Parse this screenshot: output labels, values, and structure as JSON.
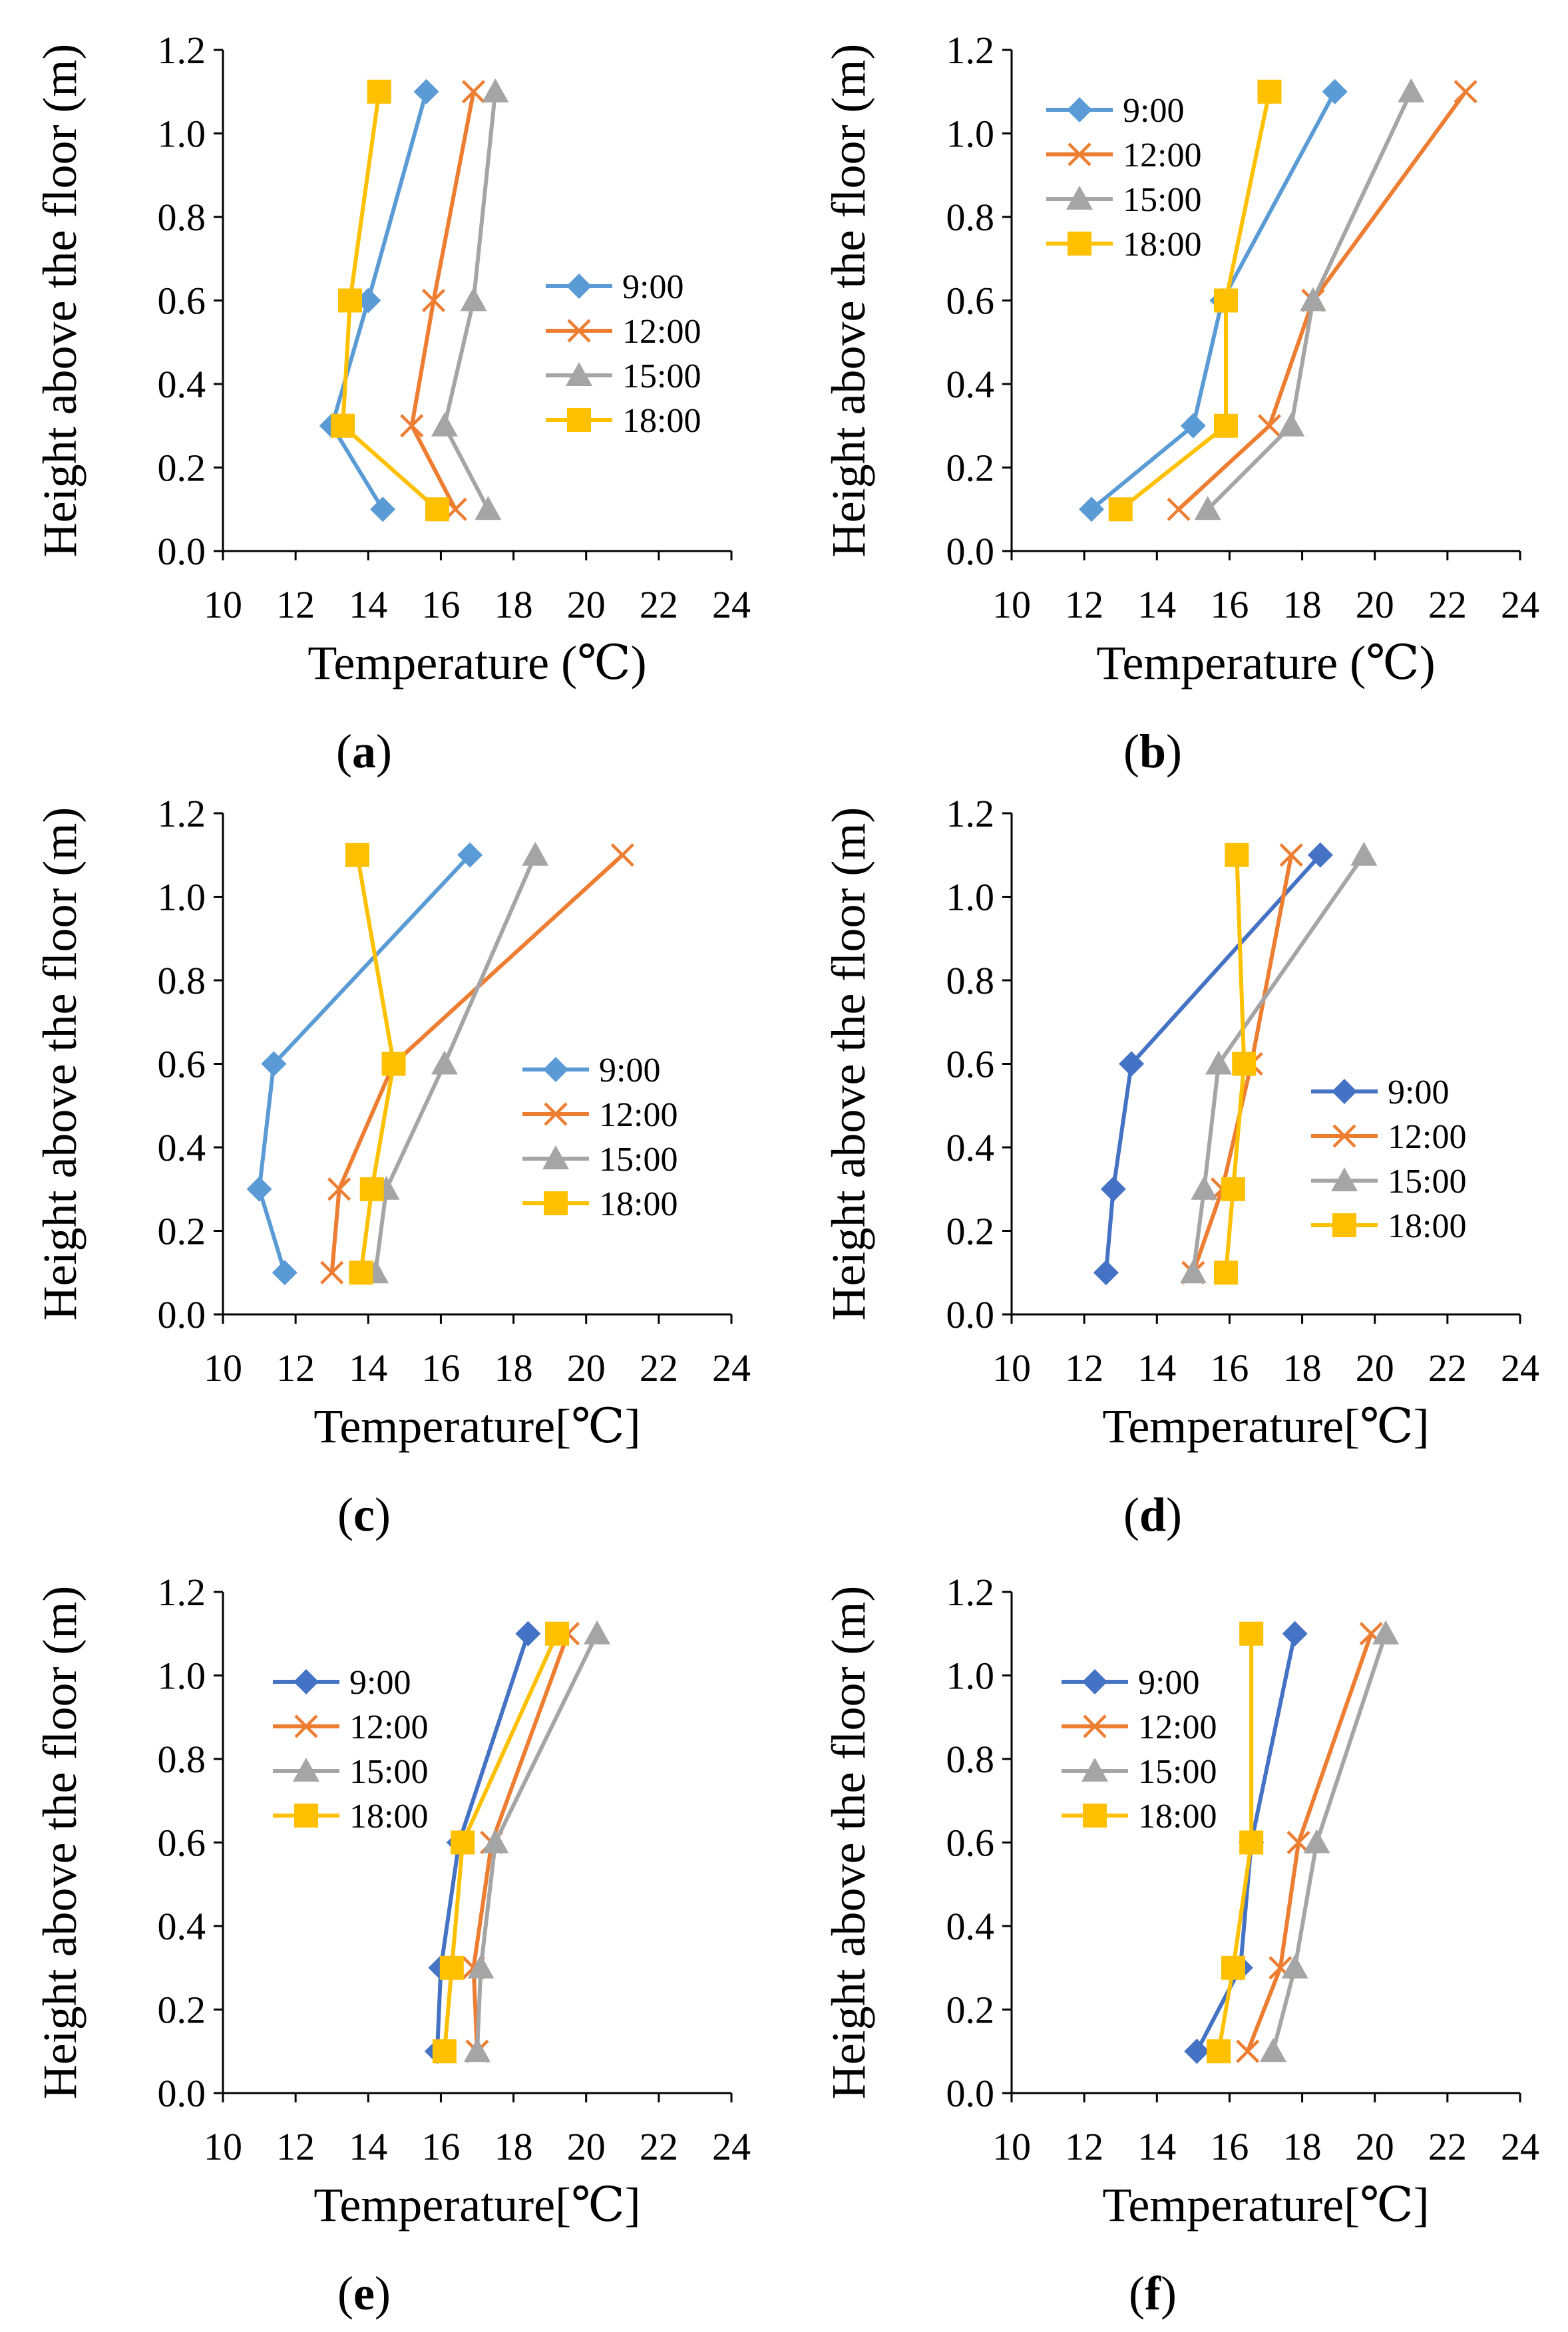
{
  "figure": {
    "colors": {
      "9:00": "#5B9BD5",
      "9:00 (dark)": "#4472C4",
      "12:00": "#ED7D31",
      "15:00": "#A5A5A5",
      "18:00": "#FFC000",
      "axis": "#000000"
    }
  },
  "chart_data": [
    {
      "panel": "(a)",
      "letter": "a",
      "type": "line",
      "xlabel": "Temperature (℃)",
      "ylabel": "Height above the floor (m)",
      "xlim": [
        10,
        24
      ],
      "ylim": [
        0,
        1.2
      ],
      "xticks": [
        "10",
        "12",
        "14",
        "16",
        "18",
        "20",
        "22",
        "24"
      ],
      "yticks": [
        "0.0",
        "0.2",
        "0.4",
        "0.6",
        "0.8",
        "1.0",
        "1.2"
      ],
      "legend_position": "right-middle",
      "series": [
        {
          "name": "9:00",
          "color": "#5B9BD5",
          "marker": "diamond",
          "x": [
            14.4,
            13.0,
            14.0,
            15.6
          ],
          "y": [
            0.1,
            0.3,
            0.6,
            1.1
          ]
        },
        {
          "name": "12:00",
          "color": "#ED7D31",
          "marker": "x",
          "x": [
            16.4,
            15.2,
            15.8,
            16.9
          ],
          "y": [
            0.1,
            0.3,
            0.6,
            1.1
          ]
        },
        {
          "name": "15:00",
          "color": "#A5A5A5",
          "marker": "triangle",
          "x": [
            17.3,
            16.1,
            16.9,
            17.5
          ],
          "y": [
            0.1,
            0.3,
            0.6,
            1.1
          ]
        },
        {
          "name": "18:00",
          "color": "#FFC000",
          "marker": "square",
          "x": [
            15.9,
            13.3,
            13.5,
            14.3
          ],
          "y": [
            0.1,
            0.3,
            0.6,
            1.1
          ]
        }
      ]
    },
    {
      "panel": "(b)",
      "letter": "b",
      "type": "line",
      "xlabel": "Temperature (℃)",
      "ylabel": "Height above the floor (m)",
      "xlim": [
        10,
        24
      ],
      "ylim": [
        0,
        1.2
      ],
      "xticks": [
        "10",
        "12",
        "14",
        "16",
        "18",
        "20",
        "22",
        "24"
      ],
      "yticks": [
        "0.0",
        "0.2",
        "0.4",
        "0.6",
        "0.8",
        "1.0",
        "1.2"
      ],
      "legend_position": "top-left",
      "series": [
        {
          "name": "9:00",
          "color": "#5B9BD5",
          "marker": "diamond",
          "x": [
            12.2,
            15.0,
            15.8,
            18.9
          ],
          "y": [
            0.1,
            0.3,
            0.6,
            1.1
          ]
        },
        {
          "name": "12:00",
          "color": "#ED7D31",
          "marker": "x",
          "x": [
            14.6,
            17.1,
            18.3,
            22.5
          ],
          "y": [
            0.1,
            0.3,
            0.6,
            1.1
          ]
        },
        {
          "name": "15:00",
          "color": "#A5A5A5",
          "marker": "triangle",
          "x": [
            15.4,
            17.7,
            18.3,
            21.0
          ],
          "y": [
            0.1,
            0.3,
            0.6,
            1.1
          ]
        },
        {
          "name": "18:00",
          "color": "#FFC000",
          "marker": "square",
          "x": [
            13.0,
            15.9,
            15.9,
            17.1
          ],
          "y": [
            0.1,
            0.3,
            0.6,
            1.1
          ]
        }
      ]
    },
    {
      "panel": "(c)",
      "letter": "c",
      "type": "line",
      "xlabel": "Temperature[℃]",
      "ylabel": "Height above the floor (m)",
      "xlim": [
        10,
        24
      ],
      "ylim": [
        0,
        1.2
      ],
      "xticks": [
        "10",
        "12",
        "14",
        "16",
        "18",
        "20",
        "22",
        "24"
      ],
      "yticks": [
        "0.0",
        "0.2",
        "0.4",
        "0.6",
        "0.8",
        "1.0",
        "1.2"
      ],
      "legend_position": "right-middle",
      "series": [
        {
          "name": "9:00",
          "color": "#5B9BD5",
          "marker": "diamond",
          "x": [
            11.7,
            11.0,
            11.4,
            16.8
          ],
          "y": [
            0.1,
            0.3,
            0.6,
            1.1
          ]
        },
        {
          "name": "12:00",
          "color": "#ED7D31",
          "marker": "x",
          "x": [
            13.0,
            13.2,
            14.7,
            21.0
          ],
          "y": [
            0.1,
            0.3,
            0.6,
            1.1
          ]
        },
        {
          "name": "15:00",
          "color": "#A5A5A5",
          "marker": "triangle",
          "x": [
            14.2,
            14.5,
            16.1,
            18.6
          ],
          "y": [
            0.1,
            0.3,
            0.6,
            1.1
          ]
        },
        {
          "name": "18:00",
          "color": "#FFC000",
          "marker": "square",
          "x": [
            13.8,
            14.1,
            14.7,
            13.7
          ],
          "y": [
            0.1,
            0.3,
            0.6,
            1.1
          ]
        }
      ]
    },
    {
      "panel": "(d)",
      "letter": "d",
      "type": "line",
      "xlabel": "Temperature[℃]",
      "ylabel": "Height above the floor (m)",
      "xlim": [
        10,
        24
      ],
      "ylim": [
        0,
        1.2
      ],
      "xticks": [
        "10",
        "12",
        "14",
        "16",
        "18",
        "20",
        "22",
        "24"
      ],
      "yticks": [
        "0.0",
        "0.2",
        "0.4",
        "0.6",
        "0.8",
        "1.0",
        "1.2"
      ],
      "legend_position": "right-middle",
      "series": [
        {
          "name": "9:00",
          "color": "#4472C4",
          "marker": "diamond",
          "x": [
            12.6,
            12.8,
            13.3,
            18.5
          ],
          "y": [
            0.1,
            0.3,
            0.6,
            1.1
          ]
        },
        {
          "name": "12:00",
          "color": "#ED7D31",
          "marker": "x",
          "x": [
            15.0,
            15.8,
            16.6,
            17.7
          ],
          "y": [
            0.1,
            0.3,
            0.6,
            1.1
          ]
        },
        {
          "name": "15:00",
          "color": "#A5A5A5",
          "marker": "triangle",
          "x": [
            15.0,
            15.3,
            15.7,
            19.7
          ],
          "y": [
            0.1,
            0.3,
            0.6,
            1.1
          ]
        },
        {
          "name": "18:00",
          "color": "#FFC000",
          "marker": "square",
          "x": [
            15.9,
            16.1,
            16.4,
            16.2
          ],
          "y": [
            0.1,
            0.3,
            0.6,
            1.1
          ]
        }
      ]
    },
    {
      "panel": "(e)",
      "letter": "e",
      "type": "line",
      "xlabel": "Temperature[℃]",
      "ylabel": "Height above the floor (m)",
      "xlim": [
        10,
        24
      ],
      "ylim": [
        0,
        1.2
      ],
      "xticks": [
        "10",
        "12",
        "14",
        "16",
        "18",
        "20",
        "22",
        "24"
      ],
      "yticks": [
        "0.0",
        "0.2",
        "0.4",
        "0.6",
        "0.8",
        "1.0",
        "1.2"
      ],
      "legend_position": "top-left",
      "series": [
        {
          "name": "9:00",
          "color": "#4472C4",
          "marker": "diamond",
          "x": [
            15.9,
            16.0,
            16.5,
            18.4
          ],
          "y": [
            0.1,
            0.3,
            0.6,
            1.1
          ]
        },
        {
          "name": "12:00",
          "color": "#ED7D31",
          "marker": "x",
          "x": [
            17.0,
            16.9,
            17.4,
            19.5
          ],
          "y": [
            0.1,
            0.3,
            0.6,
            1.1
          ]
        },
        {
          "name": "15:00",
          "color": "#A5A5A5",
          "marker": "triangle",
          "x": [
            17.0,
            17.1,
            17.5,
            20.3
          ],
          "y": [
            0.1,
            0.3,
            0.6,
            1.1
          ]
        },
        {
          "name": "18:00",
          "color": "#FFC000",
          "marker": "square",
          "x": [
            16.1,
            16.3,
            16.6,
            19.2
          ],
          "y": [
            0.1,
            0.3,
            0.6,
            1.1
          ]
        }
      ]
    },
    {
      "panel": "(f)",
      "letter": "f",
      "type": "line",
      "xlabel": "Temperature[℃]",
      "ylabel": "Height above the floor (m)",
      "xlim": [
        10,
        24
      ],
      "ylim": [
        0,
        1.2
      ],
      "xticks": [
        "10",
        "12",
        "14",
        "16",
        "18",
        "20",
        "22",
        "24"
      ],
      "yticks": [
        "0.0",
        "0.2",
        "0.4",
        "0.6",
        "0.8",
        "1.0",
        "1.2"
      ],
      "legend_position": "top-left",
      "series": [
        {
          "name": "9:00",
          "color": "#4472C4",
          "marker": "diamond",
          "x": [
            15.1,
            16.3,
            16.6,
            17.8
          ],
          "y": [
            0.1,
            0.3,
            0.6,
            1.1
          ]
        },
        {
          "name": "12:00",
          "color": "#ED7D31",
          "marker": "x",
          "x": [
            16.5,
            17.4,
            17.9,
            19.9
          ],
          "y": [
            0.1,
            0.3,
            0.6,
            1.1
          ]
        },
        {
          "name": "15:00",
          "color": "#A5A5A5",
          "marker": "triangle",
          "x": [
            17.2,
            17.8,
            18.4,
            20.3
          ],
          "y": [
            0.1,
            0.3,
            0.6,
            1.1
          ]
        },
        {
          "name": "18:00",
          "color": "#FFC000",
          "marker": "square",
          "x": [
            15.7,
            16.1,
            16.6,
            16.6
          ],
          "y": [
            0.1,
            0.3,
            0.6,
            1.1
          ]
        }
      ]
    }
  ]
}
